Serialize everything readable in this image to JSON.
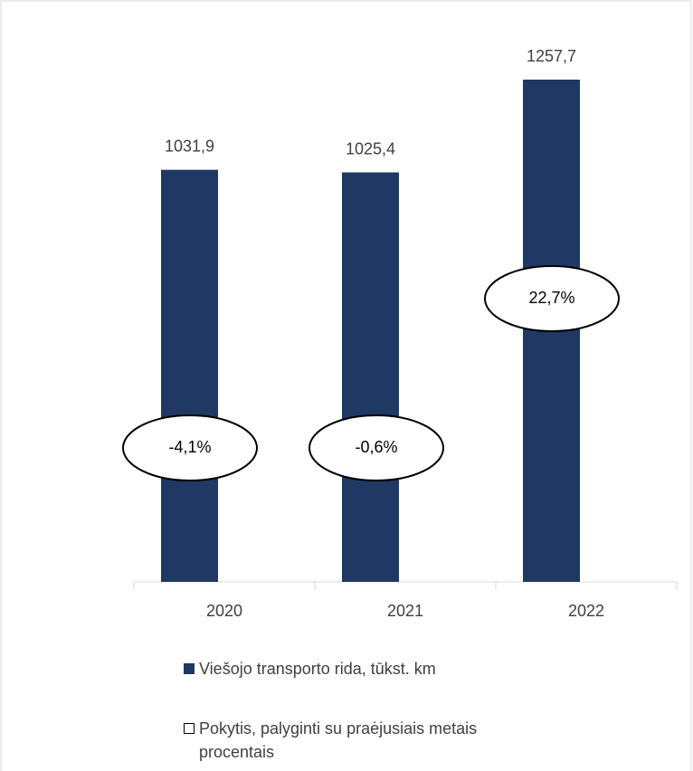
{
  "chart_data": {
    "type": "bar",
    "categories": [
      "2020",
      "2021",
      "2022"
    ],
    "series": [
      {
        "name": "Viešojo transporto rida, tūkst. km",
        "color": "#203864",
        "values": [
          1031.9,
          1025.4,
          1257.7
        ],
        "value_labels": [
          "1031,9",
          "1025,4",
          "1257,7"
        ]
      },
      {
        "name": "Pokytis, palyginti su praėjusiais metais procentais",
        "color": "#ffffff",
        "values": [
          -4.1,
          -0.6,
          22.7
        ],
        "value_labels": [
          "-4,1%",
          "-0,6%",
          "22,7%"
        ]
      }
    ]
  }
}
